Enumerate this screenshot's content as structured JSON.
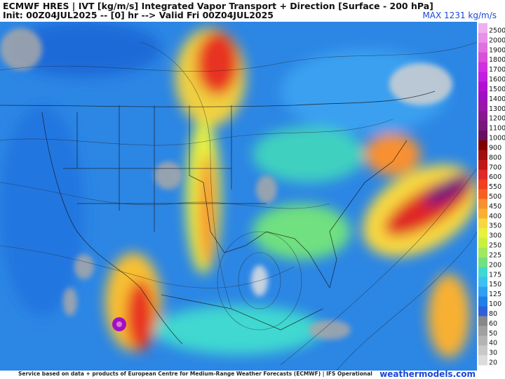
{
  "header": {
    "title": "ECMWF HRES | IVT [kg/m/s] Integrated Vapor Transport + Direction [Surface - 200 hPa]",
    "subtitle": "Init: 00Z04JUL2025 -- [0] hr --> Valid Fri 00Z04JUL2025",
    "max_label": "MAX 1231 kg/m/s"
  },
  "colorbar": {
    "labels": [
      "2500",
      "2000",
      "1900",
      "1800",
      "1700",
      "1600",
      "1500",
      "1400",
      "1300",
      "1200",
      "1100",
      "1000",
      "900",
      "800",
      "700",
      "600",
      "550",
      "500",
      "450",
      "400",
      "350",
      "300",
      "250",
      "225",
      "200",
      "175",
      "150",
      "125",
      "100",
      "80",
      "60",
      "50",
      "40",
      "30",
      "20"
    ],
    "colors": [
      "#f0b0f0",
      "#e890e8",
      "#e070e0",
      "#d850d8",
      "#d030e0",
      "#c020e0",
      "#b010d0",
      "#a010c0",
      "#9818a8",
      "#881890",
      "#781878",
      "#681060",
      "#800000",
      "#a01010",
      "#c01818",
      "#e02828",
      "#f04020",
      "#f86020",
      "#f89030",
      "#f8b030",
      "#f8d840",
      "#e8f040",
      "#c8f040",
      "#a0e860",
      "#70e080",
      "#40d8d0",
      "#40c0f0",
      "#30a0f0",
      "#2080e8",
      "#3060d8",
      "#888888",
      "#a0a0a0",
      "#b4b4b4",
      "#c8c8c8",
      "#dcdcdc"
    ]
  },
  "footer": {
    "credit": "Service based on data + products of European Centre for Medium-Range Weather Forecasts (ECMWF) | IFS Operational",
    "site": "weathermodels.com"
  }
}
